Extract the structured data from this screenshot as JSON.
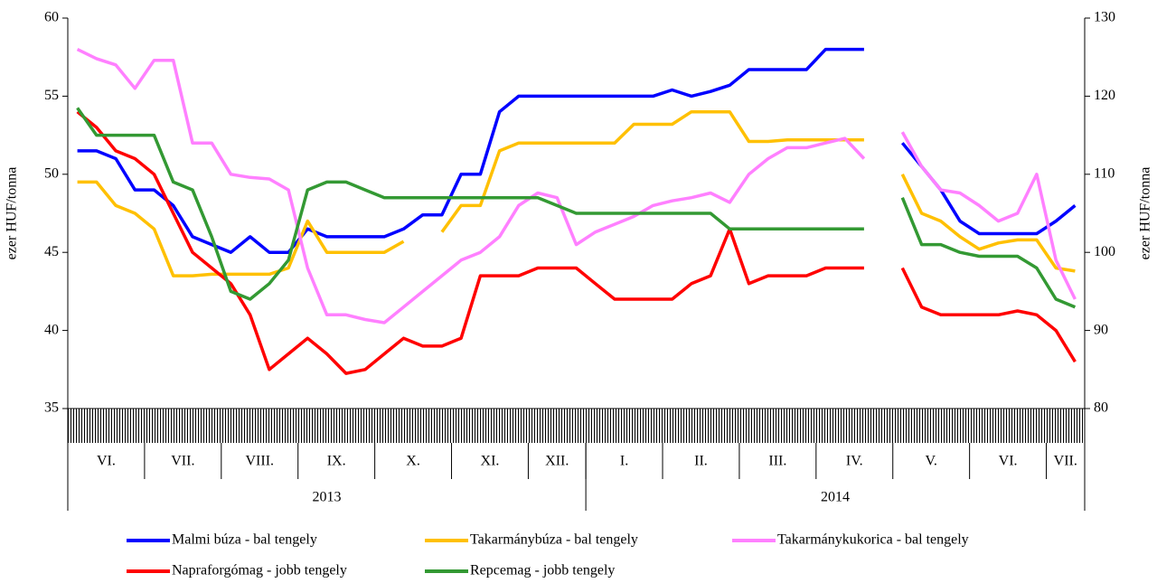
{
  "chart_data": {
    "type": "line",
    "y_label": "ezer HUF/tonna",
    "y2_label": "ezer HUF/tonna",
    "categories": [
      null,
      null,
      null,
      null,
      null,
      null,
      null,
      null,
      null,
      null,
      null,
      null,
      null,
      null,
      null,
      null,
      null,
      null,
      null,
      null,
      null,
      null,
      null,
      null,
      null,
      null,
      null,
      null,
      null,
      null,
      null,
      null,
      null,
      null,
      null,
      null,
      null,
      null,
      null,
      null,
      null,
      null,
      null,
      null,
      null,
      null,
      null,
      null,
      null,
      null,
      null,
      null,
      null
    ],
    "x_groups": [
      {
        "label": "VI.",
        "count": 4
      },
      {
        "label": "VII.",
        "count": 4
      },
      {
        "label": "VIII.",
        "count": 4
      },
      {
        "label": "IX.",
        "count": 4
      },
      {
        "label": "X.",
        "count": 4
      },
      {
        "label": "XI.",
        "count": 4
      },
      {
        "label": "XII.",
        "count": 3
      },
      {
        "label": "I.",
        "count": 4
      },
      {
        "label": "II.",
        "count": 4
      },
      {
        "label": "III.",
        "count": 4
      },
      {
        "label": "IV.",
        "count": 4
      },
      {
        "label": "V.",
        "count": 4
      },
      {
        "label": "VI.",
        "count": 4
      },
      {
        "label": "VII.",
        "count": 2
      }
    ],
    "year_groups": [
      {
        "label": "2013",
        "count": 7
      },
      {
        "label": "2014",
        "count": 7
      }
    ],
    "ylim": [
      35,
      60
    ],
    "yticks": [
      35,
      40,
      45,
      50,
      55,
      60
    ],
    "y2lim": [
      80,
      130
    ],
    "y2ticks": [
      80,
      90,
      100,
      110,
      120,
      130
    ],
    "series": [
      {
        "name": "Malmi búza - bal tengely",
        "color": "#0000ff",
        "values": [
          51.5,
          51.5,
          51,
          49,
          49,
          48,
          46,
          45.5,
          45,
          46,
          45,
          45,
          46.5,
          46,
          46,
          46,
          46,
          46.5,
          47.4,
          47.4,
          50,
          50,
          54,
          55,
          55,
          55,
          55,
          55,
          55,
          55,
          55,
          55.4,
          55,
          55.3,
          55.7,
          56.7,
          56.7,
          56.7,
          56.7,
          58,
          58,
          58,
          null,
          52,
          50.5,
          49,
          47,
          46.2,
          46.2,
          46.2,
          46.2,
          47,
          48
        ]
      },
      {
        "name": "Takarmánybúza - bal tengely",
        "color": "#ffc000",
        "values": [
          49.5,
          49.5,
          48,
          47.5,
          46.5,
          43.5,
          43.5,
          43.6,
          43.6,
          43.6,
          43.6,
          44,
          47,
          45,
          45,
          45,
          45,
          45.7,
          null,
          46.3,
          48,
          48,
          51.5,
          52,
          52,
          52,
          52,
          52,
          52,
          53.2,
          53.2,
          53.2,
          54,
          54,
          54,
          52.1,
          52.1,
          52.2,
          52.2,
          52.2,
          52.2,
          52.2,
          null,
          50,
          47.5,
          47,
          46,
          45.2,
          45.6,
          45.8,
          45.8,
          44,
          43.8
        ]
      },
      {
        "name": "Takarmánykukorica - bal tengely",
        "color": "#ff80ff",
        "values": [
          58,
          57.4,
          57,
          55.5,
          57.3,
          57.3,
          52,
          52,
          50,
          49.8,
          49.7,
          49,
          44,
          41,
          41,
          40.7,
          40.5,
          41.5,
          42.5,
          43.5,
          44.5,
          45,
          46,
          48,
          48.8,
          48.5,
          45.5,
          46.3,
          46.8,
          47.3,
          48,
          48.3,
          48.5,
          48.8,
          48.2,
          50,
          51,
          51.7,
          51.7,
          52,
          52.3,
          51,
          null,
          52.7,
          50.5,
          49,
          48.8,
          48,
          47,
          47.5,
          50,
          44.5,
          42
        ]
      },
      {
        "name": "Napraforgómag - jobb tengely",
        "color": "#ff0000",
        "axis": "y2",
        "values": [
          118,
          116,
          113,
          112,
          110,
          105,
          100,
          98,
          96,
          92,
          85,
          87,
          89,
          87,
          84.5,
          85,
          87,
          89,
          88,
          88,
          89,
          97,
          97,
          97,
          98,
          98,
          98,
          96,
          94,
          94,
          94,
          94,
          96,
          97,
          103,
          96,
          97,
          97,
          97,
          98,
          98,
          98,
          null,
          98,
          93,
          92,
          92,
          92,
          92,
          92.5,
          92,
          90,
          86
        ]
      },
      {
        "name": "Repcemag - jobb tengely",
        "color": "#339933",
        "axis": "y2",
        "values": [
          118.5,
          115,
          115,
          115,
          115,
          109,
          108,
          102,
          95,
          94,
          96,
          99,
          108,
          109,
          109,
          108,
          107,
          107,
          107,
          107,
          107,
          107,
          107,
          107,
          107,
          106,
          105,
          105,
          105,
          105,
          105,
          105,
          105,
          105,
          103,
          103,
          103,
          103,
          103,
          103,
          103,
          103,
          null,
          107,
          101,
          101,
          100,
          99.5,
          99.5,
          99.5,
          98,
          94,
          93
        ]
      }
    ]
  }
}
